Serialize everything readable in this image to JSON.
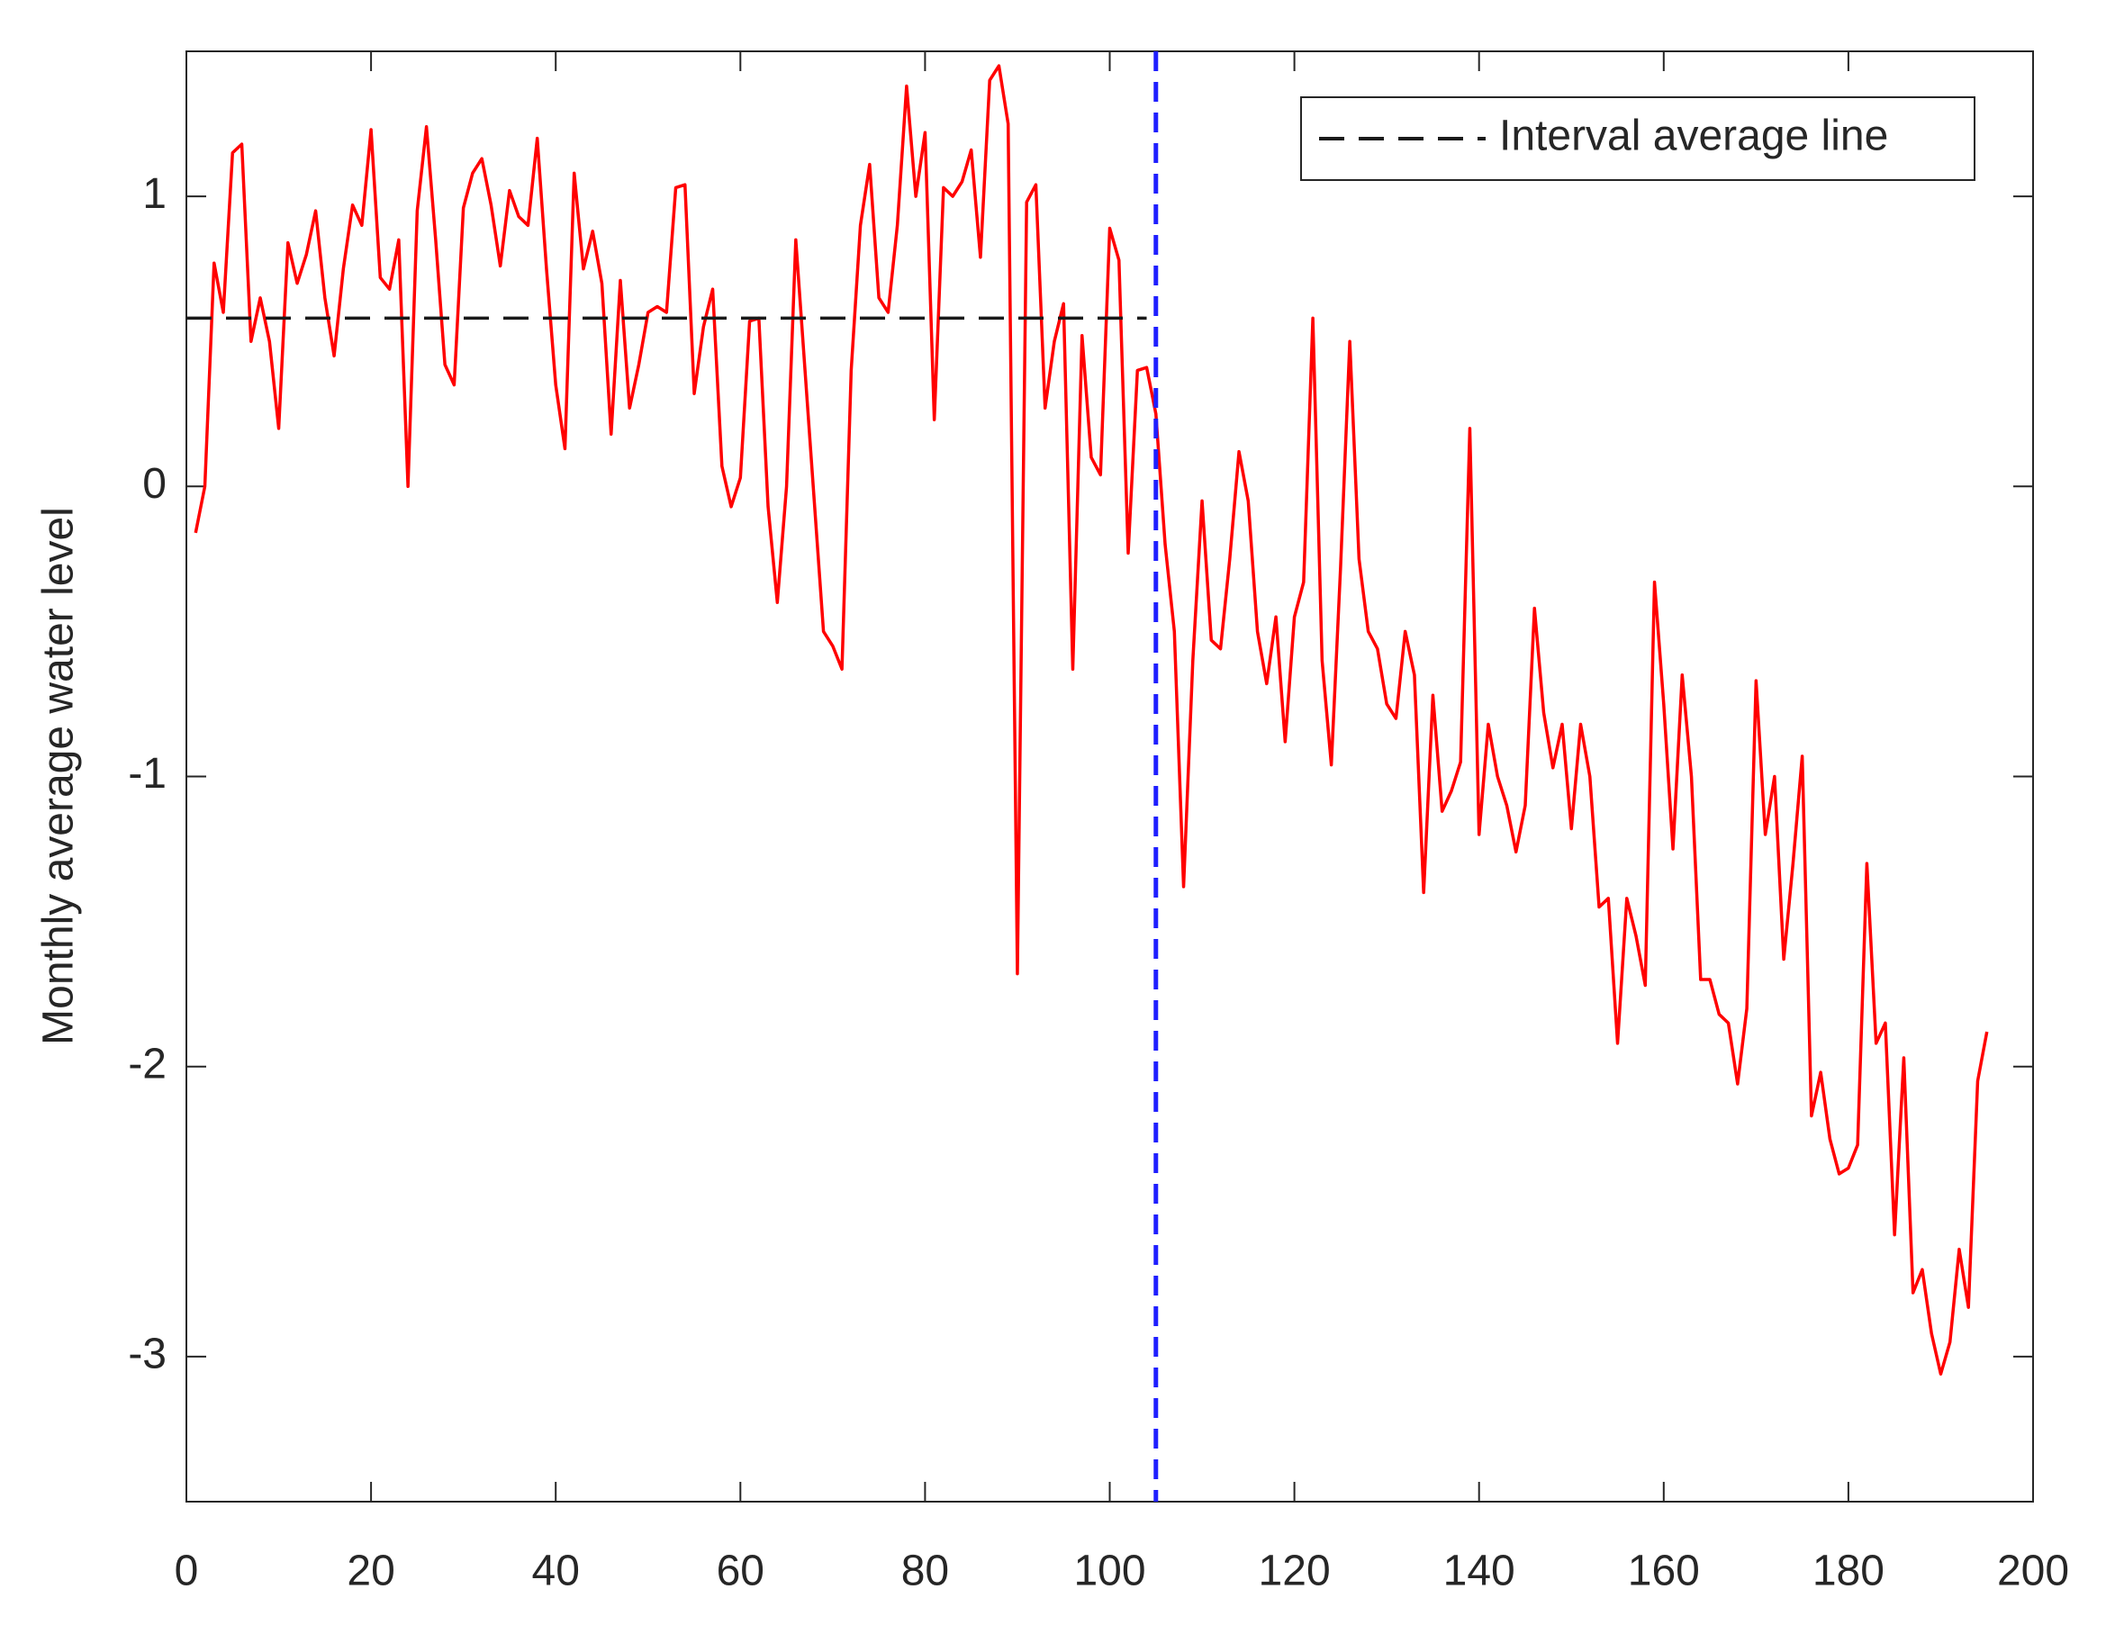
{
  "chart_data": {
    "type": "line",
    "y_label": "Monthly average water level",
    "xlim": [
      0,
      200
    ],
    "xticks": [
      0,
      20,
      40,
      60,
      80,
      100,
      120,
      140,
      160,
      180,
      200
    ],
    "ylim": [
      -3.5,
      1.5
    ],
    "yticks": [
      -3,
      -2,
      -1,
      0,
      1
    ],
    "legend_position": "upper-right",
    "series": [
      {
        "color": "#ff0000",
        "line_style": "solid",
        "x": [
          1,
          2,
          3,
          4,
          5,
          6,
          7,
          8,
          9,
          10,
          11,
          12,
          13,
          14,
          15,
          16,
          17,
          18,
          19,
          20,
          21,
          22,
          23,
          24,
          25,
          26,
          27,
          28,
          29,
          30,
          31,
          32,
          33,
          34,
          35,
          36,
          37,
          38,
          39,
          40,
          41,
          42,
          43,
          44,
          45,
          46,
          47,
          48,
          49,
          50,
          51,
          52,
          53,
          54,
          55,
          56,
          57,
          58,
          59,
          60,
          61,
          62,
          63,
          64,
          65,
          66,
          67,
          68,
          69,
          70,
          71,
          72,
          73,
          74,
          75,
          76,
          77,
          78,
          79,
          80,
          81,
          82,
          83,
          84,
          85,
          86,
          87,
          88,
          89,
          90,
          91,
          92,
          93,
          94,
          95,
          96,
          97,
          98,
          99,
          100,
          101,
          102,
          103,
          104,
          105,
          106,
          107,
          108,
          109,
          110,
          111,
          112,
          113,
          114,
          115,
          116,
          117,
          118,
          119,
          120,
          121,
          122,
          123,
          124,
          125,
          126,
          127,
          128,
          129,
          130,
          131,
          132,
          133,
          134,
          135,
          136,
          137,
          138,
          139,
          140,
          141,
          142,
          143,
          144,
          145,
          146,
          147,
          148,
          149,
          150,
          151,
          152,
          153,
          154,
          155,
          156,
          157,
          158,
          159,
          160,
          161,
          162,
          163,
          164,
          165,
          166,
          167,
          168,
          169,
          170,
          171,
          172,
          173,
          174,
          175,
          176,
          177,
          178,
          179,
          180,
          181,
          182,
          183,
          184,
          185,
          186,
          187,
          188,
          189,
          190,
          191,
          192,
          193,
          194,
          195
        ],
        "values": [
          -0.16,
          0.0,
          0.77,
          0.6,
          1.15,
          1.18,
          0.5,
          0.65,
          0.5,
          0.2,
          0.84,
          0.7,
          0.8,
          0.95,
          0.65,
          0.45,
          0.75,
          0.97,
          0.9,
          1.23,
          0.72,
          0.68,
          0.85,
          0.0,
          0.95,
          1.24,
          0.85,
          0.42,
          0.35,
          0.96,
          1.08,
          1.13,
          0.97,
          0.76,
          1.02,
          0.93,
          0.9,
          1.2,
          0.75,
          0.35,
          0.13,
          1.08,
          0.75,
          0.88,
          0.7,
          0.18,
          0.71,
          0.27,
          0.42,
          0.6,
          0.62,
          0.6,
          1.03,
          1.04,
          0.32,
          0.55,
          0.68,
          0.07,
          -0.07,
          0.03,
          0.57,
          0.58,
          -0.07,
          -0.4,
          0.0,
          0.85,
          0.4,
          -0.05,
          -0.5,
          -0.55,
          -0.63,
          0.4,
          0.9,
          1.11,
          0.65,
          0.6,
          0.9,
          1.38,
          1.0,
          1.22,
          0.23,
          1.03,
          1.0,
          1.05,
          1.16,
          0.79,
          1.4,
          1.45,
          1.25,
          -1.68,
          0.98,
          1.04,
          0.27,
          0.5,
          0.63,
          -0.63,
          0.52,
          0.1,
          0.04,
          0.89,
          0.78,
          -0.23,
          0.4,
          0.41,
          0.25,
          -0.2,
          -0.5,
          -1.38,
          -0.6,
          -0.05,
          -0.53,
          -0.56,
          -0.25,
          0.12,
          -0.05,
          -0.5,
          -0.68,
          -0.45,
          -0.88,
          -0.45,
          -0.33,
          0.58,
          -0.6,
          -0.96,
          -0.28,
          0.5,
          -0.25,
          -0.5,
          -0.56,
          -0.75,
          -0.8,
          -0.5,
          -0.65,
          -1.4,
          -0.72,
          -1.12,
          -1.05,
          -0.95,
          0.2,
          -1.2,
          -0.82,
          -1.0,
          -1.1,
          -1.26,
          -1.1,
          -0.42,
          -0.78,
          -0.97,
          -0.82,
          -1.18,
          -0.82,
          -1.0,
          -1.45,
          -1.42,
          -1.92,
          -1.42,
          -1.55,
          -1.72,
          -0.33,
          -0.75,
          -1.25,
          -0.65,
          -1.0,
          -1.7,
          -1.7,
          -1.82,
          -1.85,
          -2.06,
          -1.8,
          -0.67,
          -1.2,
          -1.0,
          -1.63,
          -1.3,
          -0.93,
          -2.17,
          -2.02,
          -2.25,
          -2.37,
          -2.35,
          -2.27,
          -1.3,
          -1.92,
          -1.85,
          -2.58,
          -1.97,
          -2.78,
          -2.7,
          -2.92,
          -3.06,
          -2.95,
          -2.63,
          -2.83,
          -2.05,
          -1.88
        ]
      },
      {
        "name": "Interval average line",
        "color": "#1a1a1a",
        "line_style": "dashed",
        "x": [
          0,
          104
        ],
        "values": [
          0.58,
          0.58
        ]
      }
    ],
    "vlines": [
      {
        "x": 105,
        "color": "#1f1fff",
        "line_style": "dashed"
      }
    ]
  }
}
